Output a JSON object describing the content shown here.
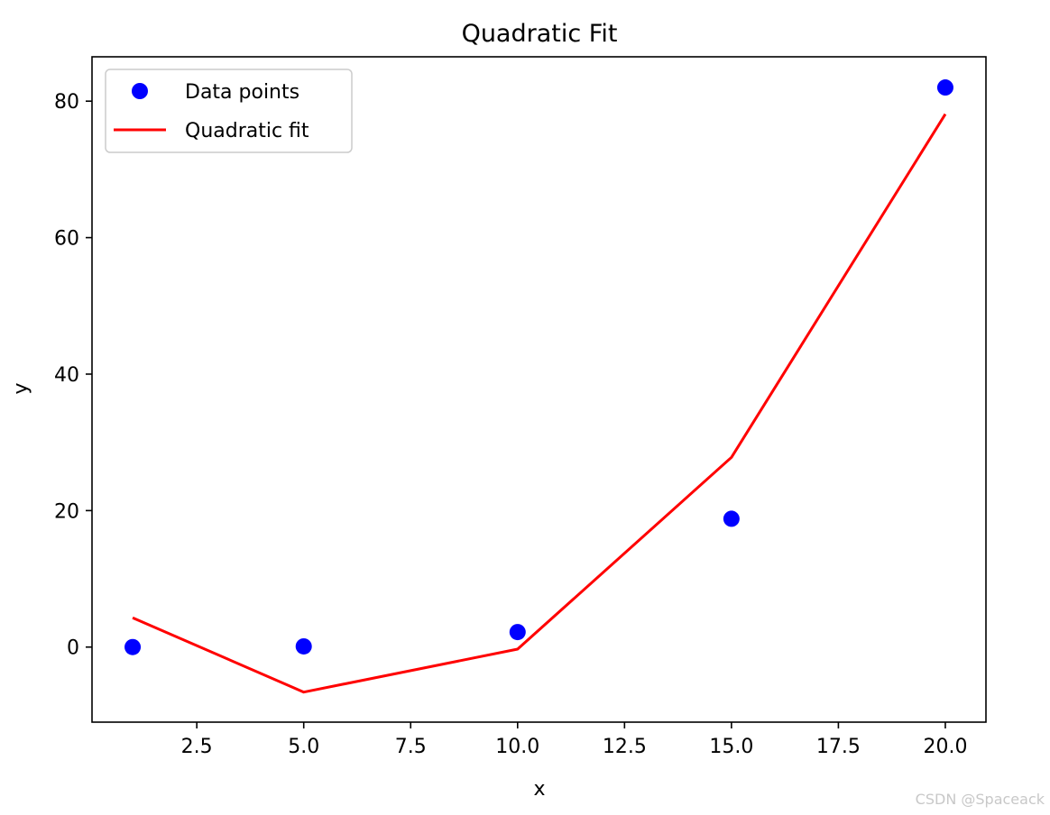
{
  "chart_data": {
    "type": "scatter",
    "title": "Quadratic Fit",
    "xlabel": "x",
    "ylabel": "y",
    "xlim": [
      0.05,
      20.95
    ],
    "ylim": [
      -11,
      86.5
    ],
    "xticks": [
      2.5,
      5.0,
      7.5,
      10.0,
      12.5,
      15.0,
      17.5,
      20.0
    ],
    "xtick_labels": [
      "2.5",
      "5.0",
      "7.5",
      "10.0",
      "12.5",
      "15.0",
      "17.5",
      "20.0"
    ],
    "yticks": [
      0,
      20,
      40,
      60,
      80
    ],
    "ytick_labels": [
      "0",
      "20",
      "40",
      "60",
      "80"
    ],
    "grid": false,
    "legend_position": "top-left",
    "series": [
      {
        "name": "Data points",
        "kind": "scatter",
        "color": "#0000ff",
        "x": [
          1,
          5,
          10,
          15,
          20
        ],
        "y": [
          0,
          0.1,
          2.2,
          18.8,
          82
        ]
      },
      {
        "name": "Quadratic fit",
        "kind": "line",
        "color": "#ff0000",
        "x": [
          1,
          5,
          10,
          15,
          20
        ],
        "y": [
          4.3,
          -6.6,
          -0.3,
          27.8,
          78.1
        ]
      }
    ]
  },
  "watermark": "CSDN @Spaceack"
}
